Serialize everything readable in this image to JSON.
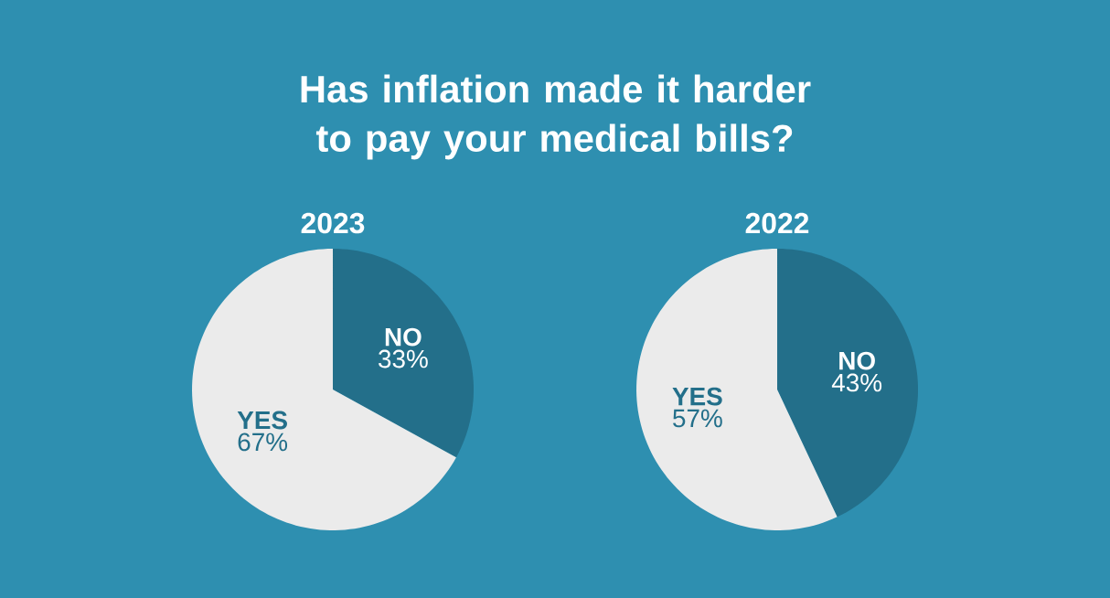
{
  "chart_data": [
    {
      "type": "pie",
      "title": "Has inflation made it harder to pay your medical bills?",
      "subtitle": "2023",
      "categories": [
        "NO",
        "YES"
      ],
      "values": [
        33,
        67
      ],
      "colors": [
        "#236f8a",
        "#ebebeb"
      ],
      "value_labels": [
        "33%",
        "67%"
      ]
    },
    {
      "type": "pie",
      "subtitle": "2022",
      "categories": [
        "NO",
        "YES"
      ],
      "values": [
        43,
        57
      ],
      "colors": [
        "#236f8a",
        "#ebebeb"
      ],
      "value_labels": [
        "43%",
        "57%"
      ]
    }
  ]
}
